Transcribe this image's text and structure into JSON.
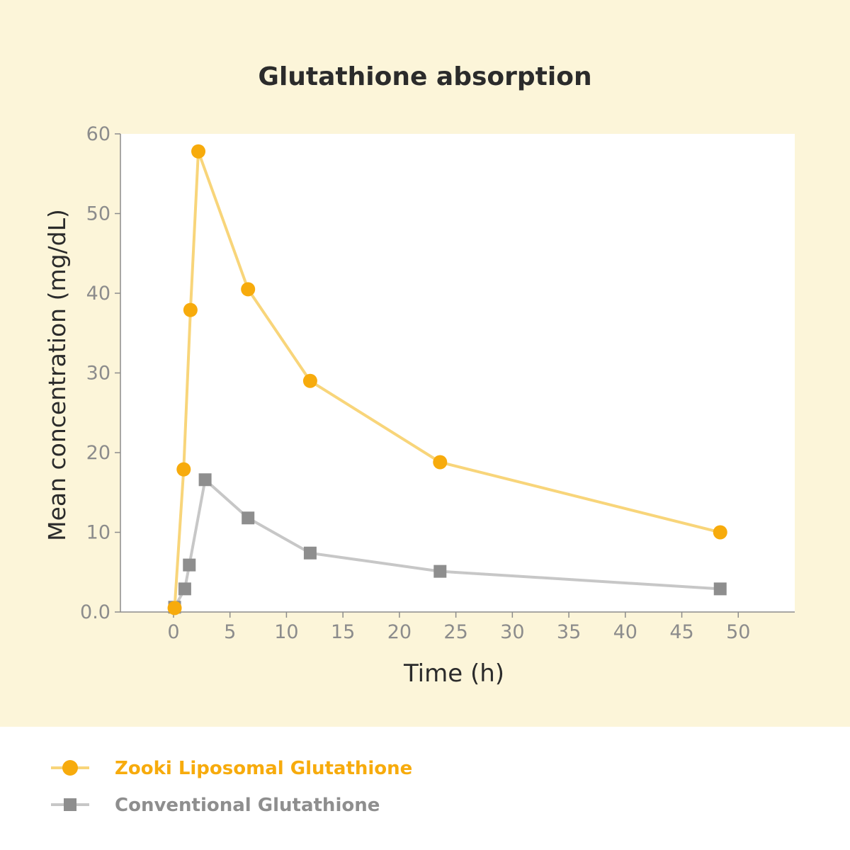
{
  "colors": {
    "panel_background": "#fcf5d9",
    "plot_background": "#ffffff",
    "axis": "#8c8c8c",
    "tick_text": "#8c8c8c",
    "label_text": "#2b2b2b",
    "series_zooki_marker": "#f7ab0c",
    "series_zooki_line": "#f8d57a",
    "series_conventional_marker": "#8e8e8e",
    "series_conventional_line": "#c7c7c7"
  },
  "chart_data": {
    "type": "line",
    "title": "Glutathione absorption",
    "xlabel": "Time (h)",
    "ylabel": "Mean concentration (mg/dL)",
    "xlim": [
      -4.7,
      55
    ],
    "ylim": [
      0,
      60
    ],
    "xticks": [
      0,
      5,
      10,
      15,
      20,
      25,
      30,
      35,
      40,
      45,
      50
    ],
    "yticks": [
      0,
      10,
      20,
      30,
      40,
      50,
      60
    ],
    "xtick_labels": [
      "0",
      "5",
      "10",
      "15",
      "20",
      "25",
      "30",
      "35",
      "40",
      "45",
      "50"
    ],
    "ytick_labels": [
      "0.0",
      "10",
      "20",
      "30",
      "40",
      "50",
      "60"
    ],
    "grid": false,
    "legend_position": "bottom-left",
    "series": [
      {
        "name": "Zooki Liposomal Glutathione",
        "marker": "circle",
        "points": [
          {
            "x": 0.1,
            "y": 0.5
          },
          {
            "x": 0.9,
            "y": 17.9
          },
          {
            "x": 1.5,
            "y": 37.9
          },
          {
            "x": 2.2,
            "y": 57.8
          },
          {
            "x": 6.6,
            "y": 40.5
          },
          {
            "x": 12.1,
            "y": 29.0
          },
          {
            "x": 23.6,
            "y": 18.8
          },
          {
            "x": 48.4,
            "y": 10.0
          }
        ]
      },
      {
        "name": "Conventional Glutathione",
        "marker": "square",
        "points": [
          {
            "x": 0.1,
            "y": 0.6
          },
          {
            "x": 1.0,
            "y": 2.9
          },
          {
            "x": 1.4,
            "y": 5.9
          },
          {
            "x": 2.8,
            "y": 16.6
          },
          {
            "x": 6.6,
            "y": 11.8
          },
          {
            "x": 12.1,
            "y": 7.4
          },
          {
            "x": 23.6,
            "y": 5.1
          },
          {
            "x": 48.4,
            "y": 2.9
          }
        ]
      }
    ]
  }
}
